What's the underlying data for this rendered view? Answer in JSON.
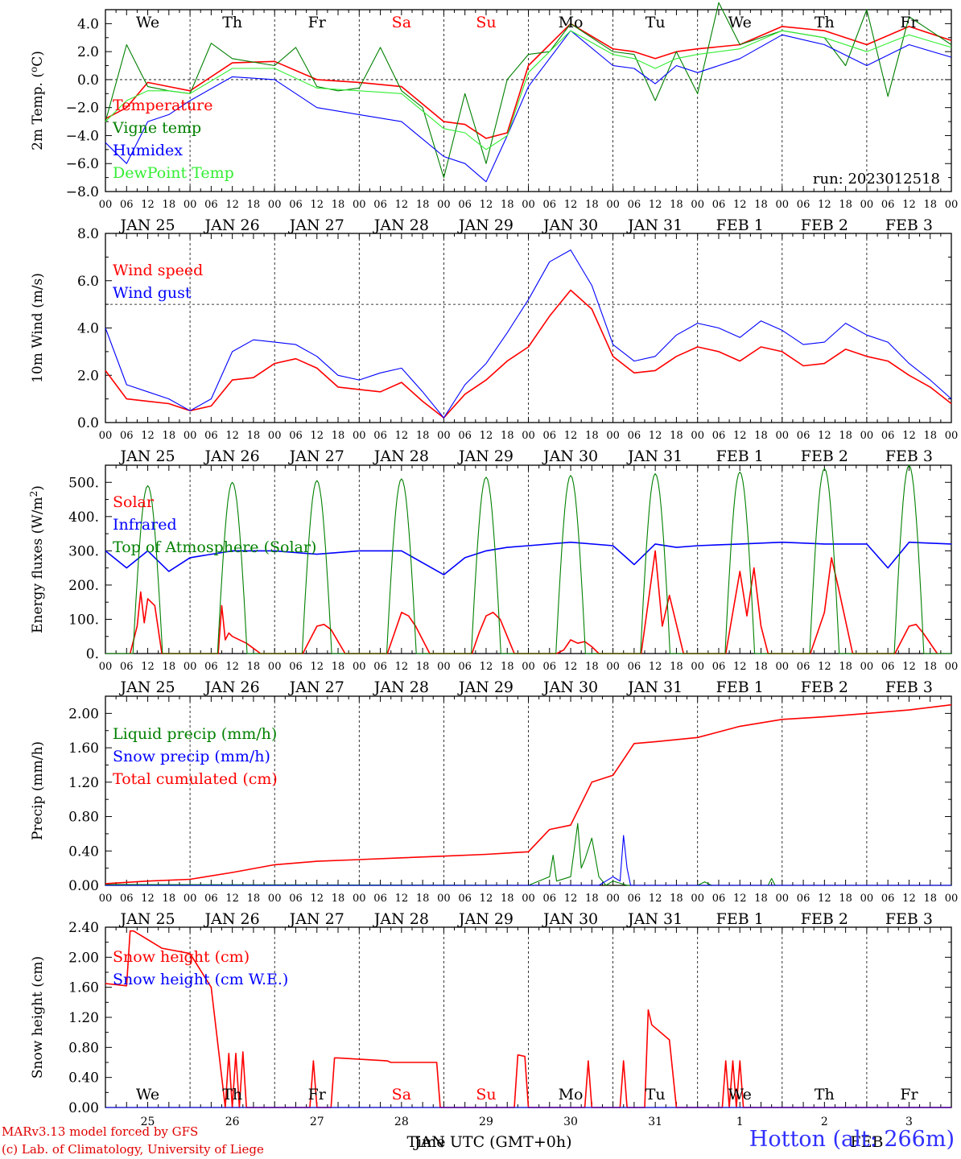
{
  "run_label": "run: 2023012518",
  "colors": {
    "red": "#ff0000",
    "green": "#008000",
    "blue": "#0000ff",
    "lightgreen": "#33ee33",
    "purple": "#7030a0"
  },
  "hour_labels": [
    "00",
    "06",
    "12",
    "18"
  ],
  "hour_labels_end": "00",
  "dates": [
    "JAN 25",
    "JAN 26",
    "JAN 27",
    "JAN 28",
    "JAN 29",
    "JAN 30",
    "JAN 31",
    "FEB  1",
    "FEB  2",
    "FEB  3"
  ],
  "weekdays_top": [
    {
      "label": "We",
      "weekend": false
    },
    {
      "label": "Th",
      "weekend": false
    },
    {
      "label": "Fr",
      "weekend": false
    },
    {
      "label": "Sa",
      "weekend": true
    },
    {
      "label": "Su",
      "weekend": true
    },
    {
      "label": "Mo",
      "weekend": false
    },
    {
      "label": "Tu",
      "weekend": false
    },
    {
      "label": "We",
      "weekend": false
    },
    {
      "label": "Th",
      "weekend": false
    },
    {
      "label": "Fr",
      "weekend": false
    }
  ],
  "bottom_day_numbers": [
    "25",
    "26",
    "27",
    "28",
    "29",
    "30",
    "31",
    "1",
    "2",
    "3"
  ],
  "bottom_axis_title": "Time",
  "bottom_axis_month": "JAN UTC (GMT+0h)",
  "bottom_axis_month2": "FEB",
  "credits": [
    "MARv3.13 model forced by GFS",
    "(c) Lab. of Climatology, University of Liege"
  ],
  "station": "Hotton (alt: 266m)",
  "chart_data": [
    {
      "type": "line",
      "ylabel": "2m Temp. (oC)",
      "ylim": [
        -8,
        5
      ],
      "yticks": [
        "4.0",
        "2.0",
        "0.0",
        "−2.0",
        "−4.0",
        "−6.0",
        "−8.0"
      ],
      "x_units": "hours since JAN 25 00 UTC",
      "xlim": [
        0,
        240
      ],
      "series": [
        {
          "name": "Temperature",
          "color": "red",
          "x": [
            0,
            6,
            12,
            18,
            24,
            36,
            48,
            60,
            72,
            84,
            96,
            102,
            108,
            114,
            120,
            132,
            144,
            150,
            156,
            162,
            168,
            180,
            192,
            204,
            216,
            228,
            240
          ],
          "y": [
            -2.8,
            -2.0,
            -0.2,
            -0.5,
            -0.8,
            1.2,
            1.3,
            0.0,
            -0.2,
            -0.5,
            -3.0,
            -3.2,
            -4.2,
            -3.8,
            1.0,
            4.0,
            2.2,
            2.0,
            1.5,
            2.0,
            2.2,
            2.5,
            3.8,
            3.5,
            2.5,
            3.8,
            2.8
          ]
        },
        {
          "name": "Vigne temp",
          "color": "green",
          "x": [
            0,
            6,
            12,
            18,
            24,
            30,
            36,
            48,
            54,
            60,
            66,
            72,
            78,
            84,
            90,
            96,
            102,
            108,
            114,
            120,
            126,
            132,
            144,
            150,
            156,
            162,
            168,
            174,
            180,
            192,
            204,
            210,
            216,
            222,
            228,
            240
          ],
          "y": [
            -3.0,
            2.5,
            -0.5,
            -0.8,
            -1.0,
            2.6,
            1.5,
            1.0,
            2.3,
            -0.5,
            -0.8,
            -0.6,
            2.3,
            -0.8,
            -2.0,
            -7.0,
            -1.0,
            -6.0,
            0.0,
            1.8,
            2.0,
            4.0,
            2.0,
            1.8,
            -1.5,
            2.0,
            -1.0,
            5.5,
            2.5,
            3.5,
            3.0,
            1.0,
            5.0,
            -1.2,
            4.5,
            2.5
          ]
        },
        {
          "name": "Humidex",
          "color": "blue",
          "x": [
            0,
            6,
            12,
            18,
            24,
            36,
            48,
            60,
            72,
            84,
            96,
            102,
            108,
            114,
            120,
            132,
            144,
            150,
            156,
            162,
            168,
            180,
            192,
            204,
            216,
            228,
            240
          ],
          "y": [
            -4.5,
            -6.0,
            -3.0,
            -2.5,
            -1.5,
            0.2,
            0.0,
            -2.0,
            -2.5,
            -3.0,
            -5.5,
            -6.0,
            -7.3,
            -4.0,
            -0.5,
            3.5,
            1.0,
            0.8,
            -0.3,
            1.0,
            0.5,
            1.5,
            3.2,
            2.5,
            1.0,
            2.5,
            1.6
          ]
        },
        {
          "name": "DewPoint Temp",
          "color": "lightgreen",
          "x": [
            0,
            6,
            12,
            18,
            24,
            36,
            48,
            60,
            72,
            84,
            96,
            102,
            108,
            114,
            120,
            132,
            144,
            150,
            156,
            162,
            168,
            180,
            192,
            204,
            216,
            228,
            240
          ],
          "y": [
            -3.0,
            -1.5,
            -0.8,
            -0.8,
            -1.0,
            0.8,
            0.8,
            -0.6,
            -0.8,
            -1.0,
            -3.5,
            -3.8,
            -5.0,
            -4.0,
            0.5,
            3.5,
            1.8,
            1.5,
            0.8,
            1.5,
            1.8,
            2.2,
            3.5,
            3.0,
            2.0,
            3.2,
            2.3
          ]
        }
      ]
    },
    {
      "type": "line",
      "ylabel": "10m Wind (m/s)",
      "ylim": [
        0,
        8
      ],
      "yticks": [
        "8.0",
        "6.0",
        "4.0",
        "2.0",
        "0.0"
      ],
      "xlim": [
        0,
        240
      ],
      "series": [
        {
          "name": "Wind speed",
          "color": "red",
          "x": [
            0,
            6,
            12,
            18,
            24,
            30,
            36,
            42,
            48,
            54,
            60,
            66,
            72,
            78,
            84,
            90,
            96,
            102,
            108,
            114,
            120,
            126,
            132,
            138,
            144,
            150,
            156,
            162,
            168,
            174,
            180,
            186,
            192,
            198,
            204,
            210,
            216,
            222,
            228,
            234,
            240
          ],
          "y": [
            2.2,
            1.0,
            0.9,
            0.8,
            0.5,
            0.7,
            1.8,
            1.9,
            2.5,
            2.7,
            2.3,
            1.5,
            1.4,
            1.3,
            1.7,
            0.9,
            0.2,
            1.2,
            1.8,
            2.6,
            3.2,
            4.5,
            5.6,
            4.8,
            2.8,
            2.1,
            2.2,
            2.8,
            3.2,
            3.0,
            2.6,
            3.2,
            3.0,
            2.4,
            2.5,
            3.1,
            2.8,
            2.6,
            2.0,
            1.5,
            0.8
          ]
        },
        {
          "name": "Wind gust",
          "color": "blue",
          "x": [
            0,
            6,
            12,
            18,
            24,
            30,
            36,
            42,
            48,
            54,
            60,
            66,
            72,
            78,
            84,
            90,
            96,
            102,
            108,
            114,
            120,
            126,
            132,
            138,
            144,
            150,
            156,
            162,
            168,
            174,
            180,
            186,
            192,
            198,
            204,
            210,
            216,
            222,
            228,
            234,
            240
          ],
          "y": [
            4.0,
            1.6,
            1.3,
            1.0,
            0.5,
            1.0,
            3.0,
            3.5,
            3.4,
            3.3,
            2.8,
            2.0,
            1.8,
            2.1,
            2.3,
            1.3,
            0.2,
            1.6,
            2.5,
            3.8,
            5.2,
            6.8,
            7.3,
            5.8,
            3.3,
            2.6,
            2.8,
            3.7,
            4.2,
            4.0,
            3.6,
            4.3,
            3.9,
            3.3,
            3.4,
            4.2,
            3.7,
            3.4,
            2.5,
            1.8,
            1.0
          ]
        }
      ]
    },
    {
      "type": "line",
      "ylabel": "Energy fluxes (W/m2)",
      "ylim": [
        0,
        550
      ],
      "yticks": [
        "500.",
        "400.",
        "300.",
        "200.",
        "100.",
        "0."
      ],
      "xlim": [
        0,
        240
      ],
      "series": [
        {
          "name": "Solar",
          "color": "red",
          "x": [
            7,
            9,
            10,
            11,
            12,
            14,
            16,
            32,
            33,
            34,
            35,
            36,
            40,
            44,
            56,
            58,
            60,
            62,
            64,
            68,
            80,
            82,
            84,
            86,
            88,
            92,
            104,
            106,
            108,
            110,
            112,
            116,
            128,
            130,
            132,
            134,
            136,
            138,
            140,
            152,
            154,
            156,
            158,
            160,
            164,
            176,
            178,
            180,
            182,
            184,
            186,
            188,
            200,
            202,
            204,
            206,
            208,
            212,
            224,
            226,
            228,
            230,
            232,
            236
          ],
          "y": [
            0,
            80,
            180,
            90,
            160,
            140,
            0,
            0,
            140,
            40,
            60,
            50,
            30,
            0,
            0,
            40,
            80,
            85,
            70,
            0,
            0,
            60,
            120,
            110,
            80,
            0,
            0,
            60,
            110,
            120,
            100,
            0,
            0,
            10,
            40,
            30,
            35,
            20,
            0,
            0,
            150,
            300,
            80,
            170,
            0,
            0,
            120,
            240,
            110,
            250,
            80,
            0,
            0,
            60,
            120,
            280,
            190,
            0,
            0,
            40,
            80,
            85,
            60,
            0
          ]
        },
        {
          "name": "Infrared",
          "color": "blue",
          "x": [
            0,
            6,
            12,
            18,
            24,
            36,
            48,
            60,
            72,
            84,
            96,
            102,
            108,
            114,
            120,
            132,
            144,
            150,
            156,
            162,
            168,
            180,
            192,
            204,
            216,
            222,
            228,
            240
          ],
          "y": [
            300,
            250,
            300,
            240,
            280,
            300,
            300,
            290,
            300,
            300,
            230,
            280,
            300,
            310,
            315,
            325,
            315,
            260,
            320,
            310,
            315,
            320,
            325,
            320,
            320,
            250,
            325,
            320
          ]
        },
        {
          "name": "Top of Atmosphere (Solar)",
          "color": "green",
          "peaks": [
            490,
            500,
            505,
            510,
            515,
            520,
            525,
            530,
            540,
            550
          ]
        }
      ]
    },
    {
      "type": "line",
      "ylabel": "Precip (mm/h)",
      "ylim": [
        0,
        2.2
      ],
      "yticks": [
        "2.00",
        "1.60",
        "1.20",
        "0.80",
        "0.40",
        "0.00"
      ],
      "xlim": [
        0,
        240
      ],
      "series": [
        {
          "name": "Liquid precip (mm/h)",
          "color": "green",
          "x": [
            0,
            120,
            126,
            127,
            128,
            132,
            134,
            135,
            136,
            138,
            140,
            142,
            144,
            148,
            168,
            170,
            172,
            188,
            189,
            190,
            240
          ],
          "y": [
            0.01,
            0.0,
            0.1,
            0.35,
            0.05,
            0.1,
            0.72,
            0.2,
            0.3,
            0.55,
            0.1,
            0.0,
            0.05,
            0.0,
            0.0,
            0.04,
            0.0,
            0.0,
            0.08,
            0.0,
            0.0
          ]
        },
        {
          "name": "Snow precip (mm/h)",
          "color": "blue",
          "x": [
            0,
            140,
            142,
            144,
            146,
            147,
            148,
            149,
            150,
            240
          ],
          "y": [
            0.0,
            0.0,
            0.05,
            0.1,
            0.05,
            0.58,
            0.2,
            0.0,
            0.0,
            0.0
          ]
        },
        {
          "name": "Total cumulated (cm)",
          "color": "red",
          "x": [
            0,
            12,
            24,
            36,
            48,
            60,
            72,
            84,
            96,
            108,
            120,
            126,
            132,
            138,
            144,
            150,
            156,
            168,
            180,
            192,
            204,
            216,
            228,
            240
          ],
          "y": [
            0.02,
            0.05,
            0.07,
            0.15,
            0.24,
            0.28,
            0.3,
            0.32,
            0.34,
            0.36,
            0.39,
            0.65,
            0.7,
            1.2,
            1.28,
            1.65,
            1.67,
            1.72,
            1.85,
            1.93,
            1.96,
            2.0,
            2.04,
            2.1
          ]
        }
      ]
    },
    {
      "type": "line",
      "ylabel": "Snow height (cm)",
      "ylim": [
        0,
        2.4
      ],
      "yticks": [
        "2.40",
        "2.00",
        "1.60",
        "1.20",
        "0.80",
        "0.40",
        "0.00"
      ],
      "xlim": [
        0,
        240
      ],
      "series": [
        {
          "name": "Snow height (cm)",
          "color": "red",
          "x": [
            0,
            6,
            7,
            8,
            16,
            24,
            30,
            34,
            35,
            36,
            37,
            38,
            39,
            40,
            41,
            58,
            59,
            60,
            64,
            65,
            66,
            80,
            81,
            82,
            94,
            95,
            96,
            116,
            117,
            119,
            120,
            136,
            137,
            138,
            146,
            147,
            148,
            148.5,
            153,
            154,
            155,
            160,
            162,
            163,
            166,
            167,
            168,
            175,
            176,
            177,
            178,
            179,
            180,
            181,
            240
          ],
          "y": [
            1.65,
            1.62,
            2.35,
            2.35,
            2.12,
            2.05,
            1.6,
            0.0,
            0.72,
            0.0,
            0.72,
            0.0,
            0.74,
            0.0,
            0.0,
            0.0,
            0.62,
            0.0,
            0.0,
            0.66,
            0.66,
            0.62,
            0.6,
            0.6,
            0.6,
            0.0,
            0.0,
            0.0,
            0.7,
            0.68,
            0.0,
            0.0,
            0.62,
            0.0,
            0.0,
            0.62,
            0.0,
            0.0,
            0.0,
            1.3,
            1.1,
            0.9,
            0.0,
            0.0,
            0.0,
            0.0,
            0.0,
            0.0,
            0.62,
            0.0,
            0.62,
            0.0,
            0.62,
            0.0,
            0.0
          ]
        },
        {
          "name": "Snow height (cm W.E.)",
          "color": "blue",
          "x": [
            0,
            240
          ],
          "y": [
            0.0,
            0.0
          ]
        }
      ]
    }
  ]
}
